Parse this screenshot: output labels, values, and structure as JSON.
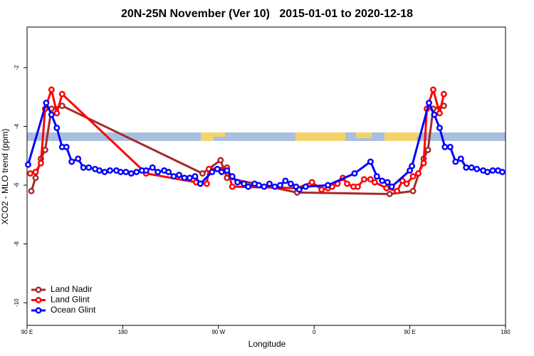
{
  "chart_data": {
    "type": "line",
    "title": "20N-25N November (Ver 10)   2015-01-01 to 2020-12-18",
    "x_label": "Longitude",
    "y_label": "XCO2 - MLO trend (ppm)",
    "xlim": [
      90,
      540
    ],
    "xticks": [
      {
        "value": 90,
        "label": "90 E"
      },
      180,
      {
        "value": 270,
        "label": "90 W"
      },
      {
        "value": 360,
        "label": "0"
      },
      {
        "value": 450,
        "label": "90 E"
      },
      {
        "value": 540,
        "label": "180"
      }
    ],
    "ylim": [
      -10.77,
      -0.62
    ],
    "yticks": [
      -10,
      -8,
      -6,
      -4,
      -2
    ],
    "legend": "bottomleft",
    "series": [
      {
        "name": "Land Nadir",
        "color": "#a52a2a",
        "x": [
          94,
          98,
          103,
          107,
          113,
          123,
          255,
          272,
          278,
          344,
          431,
          453,
          463,
          467,
          472,
          482
        ],
        "values": [
          -6.2,
          -5.75,
          -5.1,
          -4.8,
          -3.4,
          -3.3,
          -5.6,
          -5.15,
          -5.75,
          -6.25,
          -6.3,
          -6.2,
          -5.1,
          -4.8,
          -3.4,
          -3.3
        ]
      },
      {
        "name": "Land Glint",
        "color": "#ff0000",
        "x": [
          93,
          98,
          103,
          107,
          113,
          118,
          123,
          202,
          249,
          259,
          261,
          278,
          283,
          344,
          358,
          367,
          373,
          377,
          382,
          387,
          391,
          397,
          401,
          407,
          413,
          417,
          428,
          438,
          443,
          447,
          453,
          458,
          463,
          466,
          472,
          478,
          482
        ],
        "values": [
          -5.6,
          -5.55,
          -5.25,
          -3.4,
          -2.75,
          -3.55,
          -2.9,
          -5.6,
          -5.9,
          -5.95,
          -5.45,
          -5.4,
          -6.05,
          -6.1,
          -5.9,
          -6.15,
          -6.1,
          -6.05,
          -5.95,
          -5.75,
          -5.95,
          -6.05,
          -6.05,
          -5.8,
          -5.8,
          -5.9,
          -6.1,
          -6.2,
          -5.85,
          -5.95,
          -5.7,
          -5.6,
          -5.25,
          -3.4,
          -2.75,
          -3.55,
          -2.9
        ]
      },
      {
        "name": "Ocean Glint",
        "color": "#0000ff",
        "x": [
          91,
          108,
          113,
          118,
          123,
          127,
          132,
          138,
          143,
          148,
          154,
          158,
          163,
          168,
          174,
          178,
          183,
          188,
          193,
          198,
          202,
          208,
          213,
          219,
          223,
          228,
          233,
          238,
          243,
          248,
          253,
          264,
          269,
          273,
          278,
          283,
          288,
          294,
          298,
          304,
          308,
          313,
          318,
          323,
          328,
          333,
          338,
          343,
          346,
          352,
          373,
          398,
          413,
          419,
          424,
          429,
          433,
          450,
          452,
          468,
          473,
          478,
          483,
          488,
          493,
          498,
          503,
          508,
          513,
          519,
          523,
          528,
          533,
          537
        ],
        "values": [
          -5.3,
          -3.2,
          -3.6,
          -4.05,
          -4.7,
          -4.7,
          -5.2,
          -5.1,
          -5.4,
          -5.4,
          -5.45,
          -5.5,
          -5.55,
          -5.5,
          -5.5,
          -5.55,
          -5.55,
          -5.6,
          -5.55,
          -5.5,
          -5.5,
          -5.4,
          -5.55,
          -5.5,
          -5.55,
          -5.7,
          -5.65,
          -5.75,
          -5.75,
          -5.7,
          -5.95,
          -5.55,
          -5.45,
          -5.55,
          -5.5,
          -5.7,
          -5.9,
          -5.95,
          -6.05,
          -5.95,
          -6.0,
          -6.05,
          -5.95,
          -6.05,
          -6.0,
          -5.85,
          -5.95,
          -6.05,
          -6.15,
          -6.05,
          -6.0,
          -5.6,
          -5.2,
          -5.7,
          -5.85,
          -5.9,
          -6.05,
          -5.5,
          -5.35,
          -3.2,
          -3.6,
          -4.05,
          -4.7,
          -4.7,
          -5.2,
          -5.1,
          -5.4,
          -5.4,
          -5.45,
          -5.5,
          -5.55,
          -5.5,
          -5.5,
          -5.55
        ]
      }
    ]
  }
}
